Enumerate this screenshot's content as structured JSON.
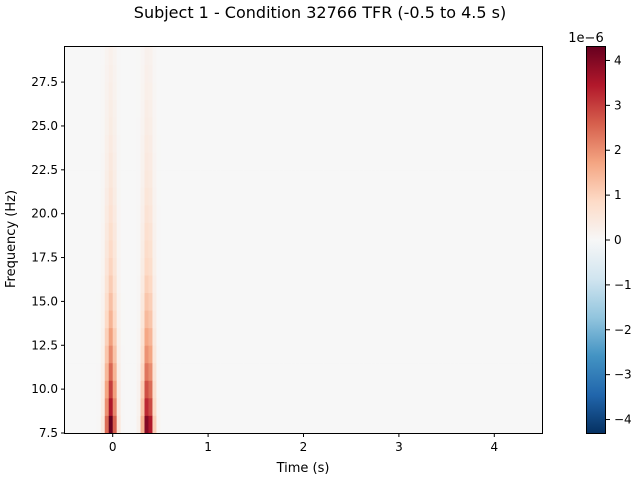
{
  "chart_data": {
    "type": "heatmap",
    "title": "Subject 1 - Condition 32766 TFR (-0.5 to 4.5 s)",
    "xlabel": "Time (s)",
    "ylabel": "Frequency (Hz)",
    "xlim": [
      -0.5,
      4.5
    ],
    "ylim": [
      7.5,
      29.5
    ],
    "x_ticks": [
      0,
      1,
      2,
      3,
      4
    ],
    "y_ticks": [
      7.5,
      10.0,
      12.5,
      15.0,
      17.5,
      20.0,
      22.5,
      25.0,
      27.5
    ],
    "frequencies_hz": [
      8,
      9,
      10,
      11,
      12,
      13,
      14,
      15,
      16,
      17,
      18,
      19,
      20,
      21,
      22,
      23,
      24,
      25,
      26,
      27,
      28,
      29
    ],
    "baseline_value": 0,
    "bursts": [
      {
        "time_s": -0.02,
        "amplitudes_1e-6": [
          4.3,
          3.5,
          3.0,
          2.5,
          2.1,
          1.8,
          1.5,
          1.3,
          1.1,
          0.95,
          0.85,
          0.75,
          0.65,
          0.58,
          0.5,
          0.45,
          0.4,
          0.35,
          0.32,
          0.28,
          0.25,
          0.22
        ]
      },
      {
        "time_s": 0.37,
        "amplitudes_1e-6": [
          4.3,
          3.5,
          3.0,
          2.5,
          2.1,
          1.8,
          1.5,
          1.3,
          1.1,
          0.95,
          0.85,
          0.75,
          0.65,
          0.58,
          0.5,
          0.45,
          0.4,
          0.35,
          0.32,
          0.28,
          0.25,
          0.22
        ]
      }
    ],
    "colorbar": {
      "colormap": "RdBu_r",
      "vmin": -4.3,
      "vmax": 4.3,
      "ticks": [
        4,
        3,
        2,
        1,
        0,
        -1,
        -2,
        -3,
        -4
      ],
      "tick_labels": [
        "4",
        "3",
        "2",
        "1",
        "0",
        "−1",
        "−2",
        "−3",
        "−4"
      ],
      "offset_label": "1e−6"
    },
    "grid": false,
    "legend": "none"
  }
}
